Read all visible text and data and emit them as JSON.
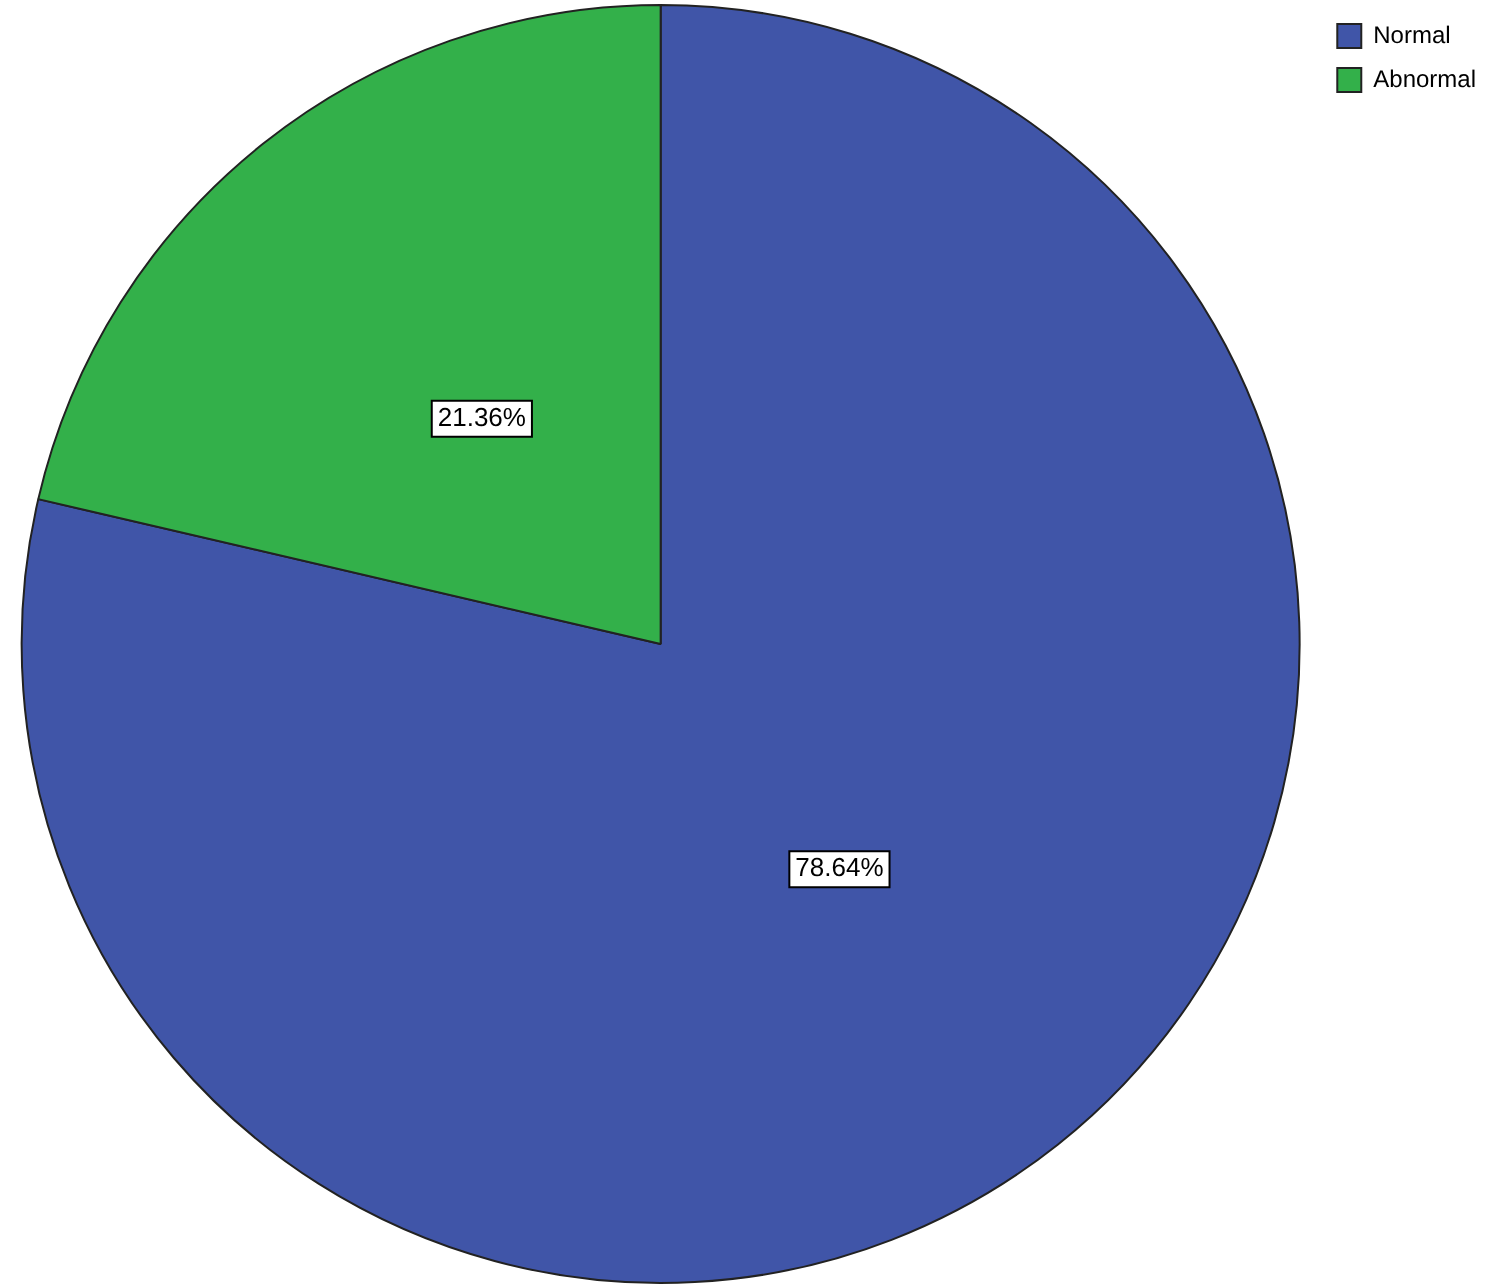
{
  "chart_data": {
    "type": "pie",
    "categories": [
      "Normal",
      "Abnormal"
    ],
    "values": [
      78.64,
      21.36
    ],
    "colors": [
      "#4055a8",
      "#33b04a"
    ],
    "value_labels": [
      "78.64%",
      "21.36%"
    ],
    "legend": "top right"
  }
}
